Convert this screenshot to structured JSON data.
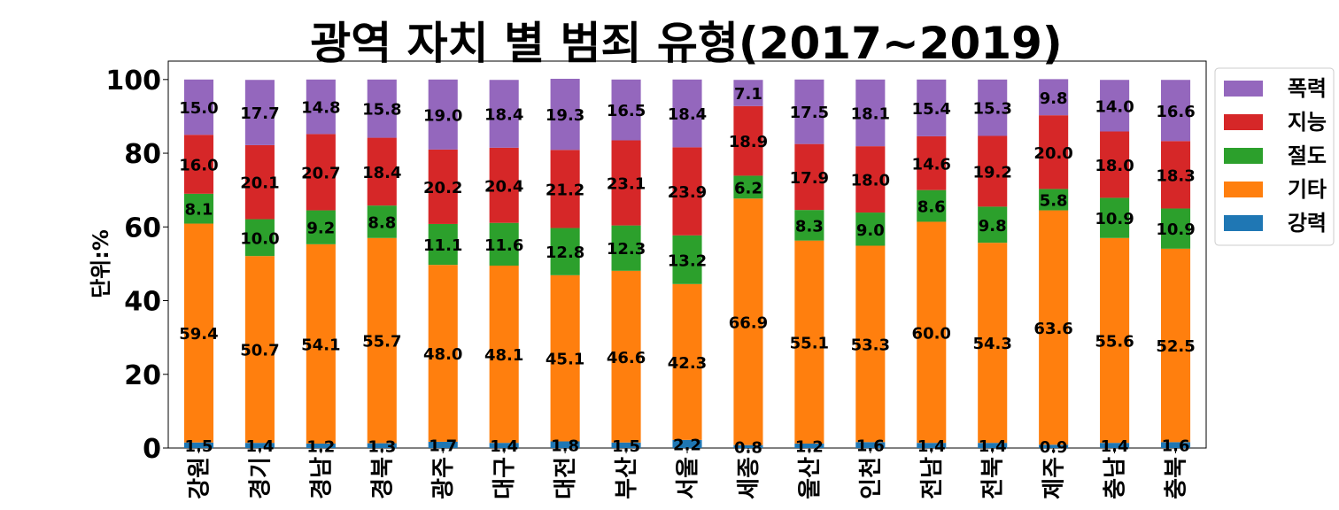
{
  "chart_data": {
    "type": "bar",
    "stacked": true,
    "title": "광역 자치 별 범죄 유형(2017~2019)",
    "ylabel": "단위:%",
    "xlabel": "",
    "ylim": [
      0,
      105
    ],
    "yticks": [
      0,
      20,
      40,
      60,
      80,
      100
    ],
    "grid": false,
    "legend_placement": "outside-right-top",
    "categories": [
      "강원",
      "경기",
      "경남",
      "경북",
      "광주",
      "대구",
      "대전",
      "부산",
      "서울",
      "세종",
      "울산",
      "인천",
      "전남",
      "전북",
      "제주",
      "충남",
      "충북"
    ],
    "series": [
      {
        "name": "강력",
        "color": "#1f77b4",
        "values": [
          1.5,
          1.4,
          1.2,
          1.3,
          1.7,
          1.4,
          1.8,
          1.5,
          2.2,
          0.8,
          1.2,
          1.6,
          1.4,
          1.4,
          0.9,
          1.4,
          1.6
        ]
      },
      {
        "name": "기타",
        "color": "#ff7f0e",
        "values": [
          59.4,
          50.7,
          54.1,
          55.7,
          48.0,
          48.1,
          45.1,
          46.6,
          42.3,
          66.9,
          55.1,
          53.3,
          60.0,
          54.3,
          63.6,
          55.6,
          52.5
        ]
      },
      {
        "name": "절도",
        "color": "#2ca02c",
        "values": [
          8.1,
          10.0,
          9.2,
          8.8,
          11.1,
          11.6,
          12.8,
          12.3,
          13.2,
          6.2,
          8.3,
          9.0,
          8.6,
          9.8,
          5.8,
          10.9,
          10.9
        ]
      },
      {
        "name": "지능",
        "color": "#d62728",
        "values": [
          16.0,
          20.1,
          20.7,
          18.4,
          20.2,
          20.4,
          21.2,
          23.1,
          23.9,
          18.9,
          17.9,
          18.0,
          14.6,
          19.2,
          20.0,
          18.0,
          18.3
        ]
      },
      {
        "name": "폭력",
        "color": "#9467bd",
        "values": [
          15.0,
          17.7,
          14.8,
          15.8,
          19.0,
          18.4,
          19.3,
          16.5,
          18.4,
          7.1,
          17.5,
          18.1,
          15.4,
          15.3,
          9.8,
          14.0,
          16.6
        ]
      }
    ],
    "legend_order": [
      "폭력",
      "지능",
      "절도",
      "기타",
      "강력"
    ]
  }
}
